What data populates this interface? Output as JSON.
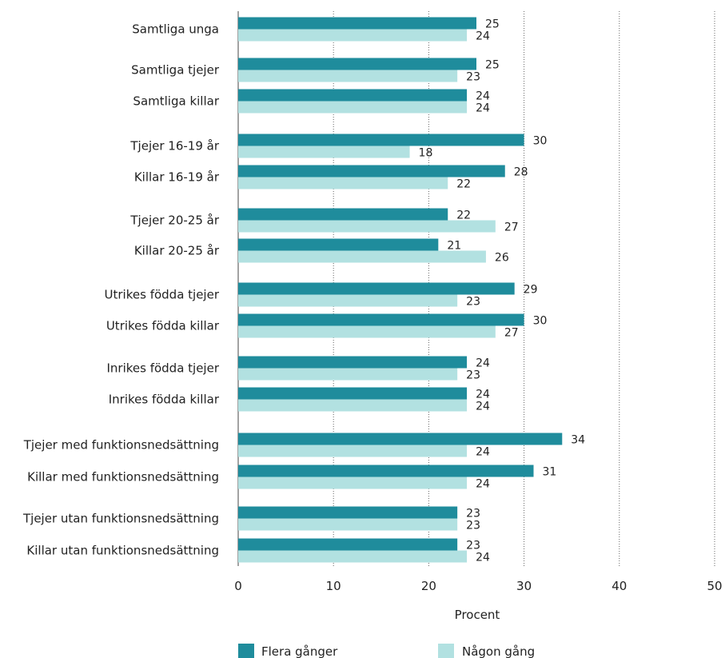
{
  "chart_data": {
    "type": "bar",
    "orientation": "horizontal",
    "categories": [
      "Samtliga unga",
      "Samtliga tjejer",
      "Samtliga killar",
      "Tjejer 16-19 år",
      "Killar 16-19 år",
      "Tjejer 20-25 år",
      "Killar 20-25 år",
      "Utrikes födda tjejer",
      "Utrikes födda killar",
      "Inrikes födda tjejer",
      "Inrikes födda killar",
      "Tjejer med funktionsnedsättning",
      "Killar med funktionsnedsättning",
      "Tjejer utan funktionsnedsättning",
      "Killar utan funktionsnedsättning"
    ],
    "series": [
      {
        "name": "Flera gånger",
        "color": "#1f8c9c",
        "values": [
          25,
          25,
          24,
          30,
          28,
          22,
          21,
          29,
          30,
          24,
          24,
          34,
          31,
          23,
          23
        ]
      },
      {
        "name": "Någon gång",
        "color": "#b2e1e1",
        "values": [
          24,
          23,
          24,
          18,
          22,
          27,
          26,
          23,
          27,
          23,
          24,
          24,
          24,
          23,
          24
        ]
      }
    ],
    "xlabel": "Procent",
    "xlim": [
      0,
      50
    ],
    "xticks": [
      "0",
      "10",
      "20",
      "30",
      "40",
      "50"
    ],
    "grid": "vertical dotted",
    "legend_position": "bottom"
  }
}
